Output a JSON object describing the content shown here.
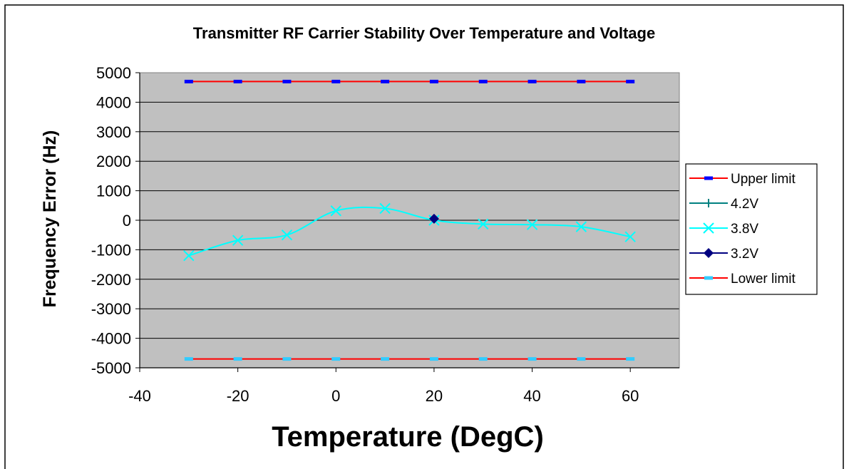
{
  "chart_data": {
    "type": "line",
    "title": "Transmitter RF Carrier Stability Over Temperature and Voltage",
    "xlabel": "Temperature (DegC)",
    "ylabel": "Frequency Error (Hz)",
    "xlim": [
      -40,
      70
    ],
    "ylim": [
      -5000,
      5000
    ],
    "x_ticks": [
      -40,
      -20,
      0,
      20,
      40,
      60
    ],
    "y_ticks": [
      5000,
      4000,
      3000,
      2000,
      1000,
      0,
      -1000,
      -2000,
      -3000,
      -4000,
      -5000
    ],
    "grid": true,
    "legend_position": "right",
    "plot_background": "#c0c0c0",
    "series": [
      {
        "name": "Upper limit",
        "x": [
          -30,
          -20,
          -10,
          0,
          10,
          20,
          30,
          40,
          50,
          60
        ],
        "y": [
          4700,
          4700,
          4700,
          4700,
          4700,
          4700,
          4700,
          4700,
          4700,
          4700
        ],
        "line_color": "#ff0000",
        "marker_color": "#0000ff",
        "marker": "dash"
      },
      {
        "name": "4.2V",
        "x": [],
        "y": [],
        "line_color": "#008080",
        "marker_color": "#008080",
        "marker": "plus"
      },
      {
        "name": "3.8V",
        "x": [
          -30,
          -20,
          -10,
          0,
          10,
          20,
          30,
          40,
          50,
          60
        ],
        "y": [
          -1200,
          -680,
          -500,
          320,
          400,
          0,
          -130,
          -150,
          -220,
          -560
        ],
        "line_color": "#00ffff",
        "marker_color": "#00ffff",
        "marker": "x"
      },
      {
        "name": "3.2V",
        "x": [
          20
        ],
        "y": [
          50
        ],
        "line_color": "#000080",
        "marker_color": "#000080",
        "marker": "diamond"
      },
      {
        "name": "Lower limit",
        "x": [
          -30,
          -20,
          -10,
          0,
          10,
          20,
          30,
          40,
          50,
          60
        ],
        "y": [
          -4700,
          -4700,
          -4700,
          -4700,
          -4700,
          -4700,
          -4700,
          -4700,
          -4700,
          -4700
        ],
        "line_color": "#ff0000",
        "marker_color": "#33ccff",
        "marker": "dash"
      }
    ]
  }
}
